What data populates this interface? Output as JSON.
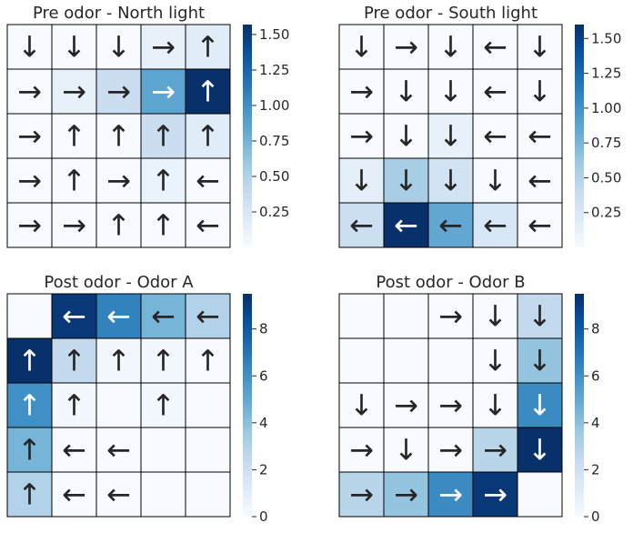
{
  "colormap": {
    "name": "Blues",
    "stops": [
      "#f7fbff",
      "#deebf7",
      "#c6dbef",
      "#9ecae1",
      "#6baed6",
      "#4292c6",
      "#2171b5",
      "#08519c",
      "#08306b"
    ]
  },
  "arrow_glyphs": {
    "up": "↑",
    "down": "↓",
    "left": "←",
    "right": "→",
    "none": ""
  },
  "chart_data": [
    {
      "type": "heatmap",
      "title": "Pre odor - North light",
      "vmin": 0.0,
      "vmax": 1.57,
      "colorbar_ticks": [
        "0.25",
        "0.50",
        "0.75",
        "1.00",
        "1.25",
        "1.50"
      ],
      "values": [
        [
          0.0,
          0.0,
          0.0,
          0.12,
          0.18
        ],
        [
          0.0,
          0.12,
          0.35,
          0.85,
          1.57
        ],
        [
          0.0,
          0.0,
          0.0,
          0.35,
          0.18
        ],
        [
          0.0,
          0.0,
          0.0,
          0.1,
          0.0
        ],
        [
          0.0,
          0.0,
          0.0,
          0.0,
          0.0
        ]
      ],
      "arrows": [
        [
          "down",
          "down",
          "down",
          "right",
          "up"
        ],
        [
          "right",
          "right",
          "right",
          "right",
          "up"
        ],
        [
          "right",
          "up",
          "up",
          "up",
          "up"
        ],
        [
          "right",
          "up",
          "right",
          "up",
          "left"
        ],
        [
          "right",
          "right",
          "up",
          "up",
          "left"
        ]
      ]
    },
    {
      "type": "heatmap",
      "title": "Pre odor - South light",
      "vmin": 0.0,
      "vmax": 1.6,
      "colorbar_ticks": [
        "0.25",
        "0.50",
        "0.75",
        "1.00",
        "1.25",
        "1.50"
      ],
      "values": [
        [
          0.0,
          0.0,
          0.0,
          0.0,
          0.0
        ],
        [
          0.0,
          0.0,
          0.0,
          0.0,
          0.0
        ],
        [
          0.0,
          0.0,
          0.12,
          0.0,
          0.0
        ],
        [
          0.15,
          0.55,
          0.3,
          0.0,
          0.0
        ],
        [
          0.35,
          1.6,
          0.85,
          0.25,
          0.0
        ]
      ],
      "arrows": [
        [
          "down",
          "right",
          "down",
          "left",
          "down"
        ],
        [
          "right",
          "down",
          "down",
          "left",
          "down"
        ],
        [
          "right",
          "down",
          "down",
          "left",
          "left"
        ],
        [
          "down",
          "down",
          "down",
          "down",
          "left"
        ],
        [
          "left",
          "left",
          "left",
          "left",
          "left"
        ]
      ]
    },
    {
      "type": "heatmap",
      "title": "Post odor - Odor A",
      "vmin": 0.0,
      "vmax": 9.5,
      "colorbar_ticks": [
        "0",
        "2",
        "4",
        "6",
        "8"
      ],
      "values": [
        [
          0.0,
          9.2,
          6.5,
          4.5,
          3.0
        ],
        [
          9.5,
          2.5,
          0.2,
          0.2,
          0.0
        ],
        [
          6.0,
          0.2,
          0.0,
          0.2,
          0.0
        ],
        [
          4.5,
          0.0,
          0.0,
          0.0,
          0.0
        ],
        [
          3.0,
          0.0,
          0.0,
          0.0,
          0.0
        ]
      ],
      "arrows": [
        [
          "none",
          "left",
          "left",
          "left",
          "left"
        ],
        [
          "up",
          "up",
          "up",
          "up",
          "up"
        ],
        [
          "up",
          "up",
          "none",
          "up",
          "none"
        ],
        [
          "up",
          "left",
          "left",
          "none",
          "none"
        ],
        [
          "up",
          "left",
          "left",
          "none",
          "none"
        ]
      ]
    },
    {
      "type": "heatmap",
      "title": "Post odor - Odor B",
      "vmin": 0.0,
      "vmax": 9.5,
      "colorbar_ticks": [
        "0",
        "2",
        "4",
        "6",
        "8"
      ],
      "values": [
        [
          0.0,
          0.0,
          0.0,
          0.0,
          2.5
        ],
        [
          0.0,
          0.0,
          0.0,
          0.0,
          3.8
        ],
        [
          0.0,
          0.0,
          0.0,
          0.0,
          6.2
        ],
        [
          0.0,
          0.0,
          0.0,
          2.8,
          9.5
        ],
        [
          2.8,
          3.8,
          6.2,
          9.2,
          0.0
        ]
      ],
      "arrows": [
        [
          "none",
          "none",
          "right",
          "down",
          "down"
        ],
        [
          "none",
          "none",
          "none",
          "down",
          "down"
        ],
        [
          "down",
          "right",
          "right",
          "down",
          "down"
        ],
        [
          "right",
          "down",
          "right",
          "right",
          "down"
        ],
        [
          "right",
          "right",
          "right",
          "right",
          "none"
        ]
      ]
    }
  ]
}
